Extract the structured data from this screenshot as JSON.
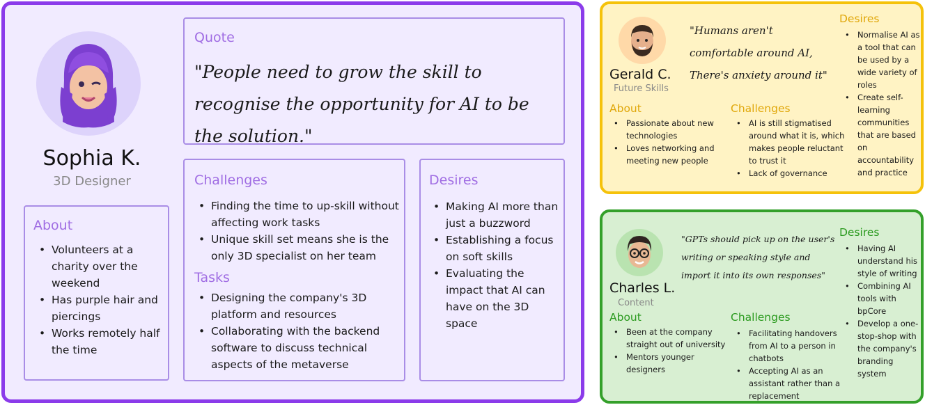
{
  "sophia": {
    "name": "Sophia K.",
    "role": "3D Designer",
    "about_title": "About",
    "about_items": [
      "Volunteers at a charity over the weekend",
      "Has purple hair and piercings",
      "Works remotely half the time"
    ],
    "quote_title": "Quote",
    "quote": "\"People need to grow the skill to recognise the opportunity for AI to be the solution.\"",
    "challenges_title": "Challenges",
    "challenges_items": [
      "Finding the time to up-skill without affecting work tasks",
      "Unique skill set means she is the only 3D specialist on her team"
    ],
    "tasks_title": "Tasks",
    "tasks_items": [
      "Designing the company's 3D platform and resources",
      "Collaborating with the backend software to discuss technical aspects of the metaverse"
    ],
    "desires_title": "Desires",
    "desires_items": [
      "Making AI more than just a buzzword",
      "Establishing a focus on soft skills",
      "Evaluating the impact that AI can have on the 3D space"
    ]
  },
  "gerald": {
    "name": "Gerald C.",
    "role": "Future Skills",
    "quote": "\"Humans aren't comfortable around AI, There's anxiety around it\"",
    "about_title": "About",
    "about_items": [
      "Passionate about new technologies",
      "Loves networking and meeting new people"
    ],
    "challenges_title": "Challenges",
    "challenges_items": [
      "AI is still stigmatised around what it is, which makes people reluctant to trust it",
      "Lack of governance"
    ],
    "desires_title": "Desires",
    "desires_items": [
      "Normalise AI as a tool that can be used by a wide variety of roles",
      "Create self-learning communities that are based on accountability and practice"
    ]
  },
  "charles": {
    "name": "Charles L.",
    "role": "Content",
    "quote": "\"GPTs should pick up on the user's writing or speaking style and import it into its own responses\"",
    "about_title": "About",
    "about_items": [
      "Been at the company straight out of university",
      "Mentors younger designers"
    ],
    "challenges_title": "Challenges",
    "challenges_items": [
      "Facilitating handovers from AI to a person in chatbots",
      "Accepting AI as an assistant rather than a replacement"
    ],
    "desires_title": "Desires",
    "desires_items": [
      "Having AI understand his style of writing",
      "Combining AI tools with bpCore",
      "Develop a one-stop-shop with the company's branding system"
    ]
  },
  "colors": {
    "purple_border": "#8b3bea",
    "purple_bg": "#f1ebff",
    "yellow_border": "#f5c20a",
    "yellow_bg": "#fff3c4",
    "green_border": "#34a02a",
    "green_bg": "#d8efd2"
  },
  "icons": {
    "sophia_avatar": "purple-hair-memoji-icon",
    "gerald_avatar": "bearded-man-memoji-icon",
    "charles_avatar": "glasses-man-memoji-icon"
  }
}
